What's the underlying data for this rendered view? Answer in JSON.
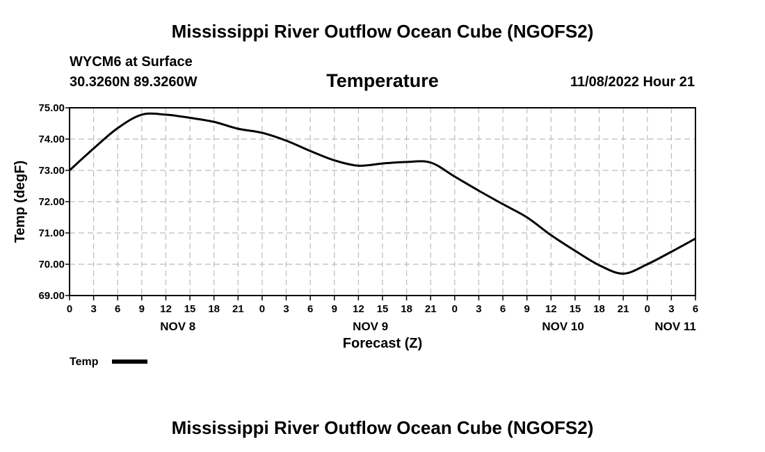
{
  "page": {
    "title": "Mississippi River Outflow Ocean Cube (NGOFS2)",
    "title_bottom": "Mississippi River Outflow Ocean Cube (NGOFS2)"
  },
  "header": {
    "station": "WYCM6 at Surface",
    "coords": "30.3260N  89.3260W",
    "variable": "Temperature",
    "datetime": "11/08/2022 Hour 21"
  },
  "colors": {
    "line": "#000000",
    "grid": "#bbbbbb",
    "background": "#ffffff"
  },
  "chart_data": {
    "type": "line",
    "title": "Temperature",
    "xlabel": "Forecast (Z)",
    "ylabel": "Temp (degF)",
    "xlim": [
      0,
      78
    ],
    "ylim": [
      69,
      75
    ],
    "grid": true,
    "x_tick_labels": [
      "0",
      "3",
      "6",
      "9",
      "12",
      "15",
      "18",
      "21",
      "0",
      "3",
      "6",
      "9",
      "12",
      "15",
      "18",
      "21",
      "0",
      "3",
      "6",
      "9",
      "12",
      "15",
      "18",
      "21",
      "0",
      "3",
      "6"
    ],
    "y_tick_labels": [
      "69.00",
      "70.00",
      "71.00",
      "72.00",
      "73.00",
      "74.00",
      "75.00"
    ],
    "day_labels": [
      {
        "label": "NOV 8",
        "x": 13.5
      },
      {
        "label": "NOV 9",
        "x": 37.5
      },
      {
        "label": "NOV 10",
        "x": 61.5
      },
      {
        "label": "NOV 11",
        "x": 75.5
      }
    ],
    "legend": [
      {
        "name": "Temp",
        "placement": "bottom-left"
      }
    ],
    "series": [
      {
        "name": "Temp",
        "x": [
          0,
          3,
          6,
          9,
          12,
          15,
          18,
          21,
          24,
          27,
          30,
          33,
          36,
          39,
          42,
          45,
          48,
          51,
          54,
          57,
          60,
          63,
          66,
          69,
          72,
          75,
          78
        ],
        "values": [
          73.0,
          73.7,
          74.35,
          74.78,
          74.78,
          74.68,
          74.55,
          74.33,
          74.2,
          73.95,
          73.62,
          73.32,
          73.15,
          73.22,
          73.27,
          73.25,
          72.8,
          72.35,
          71.92,
          71.5,
          70.93,
          70.43,
          69.97,
          69.7,
          70.0,
          70.4,
          70.82
        ]
      }
    ]
  }
}
